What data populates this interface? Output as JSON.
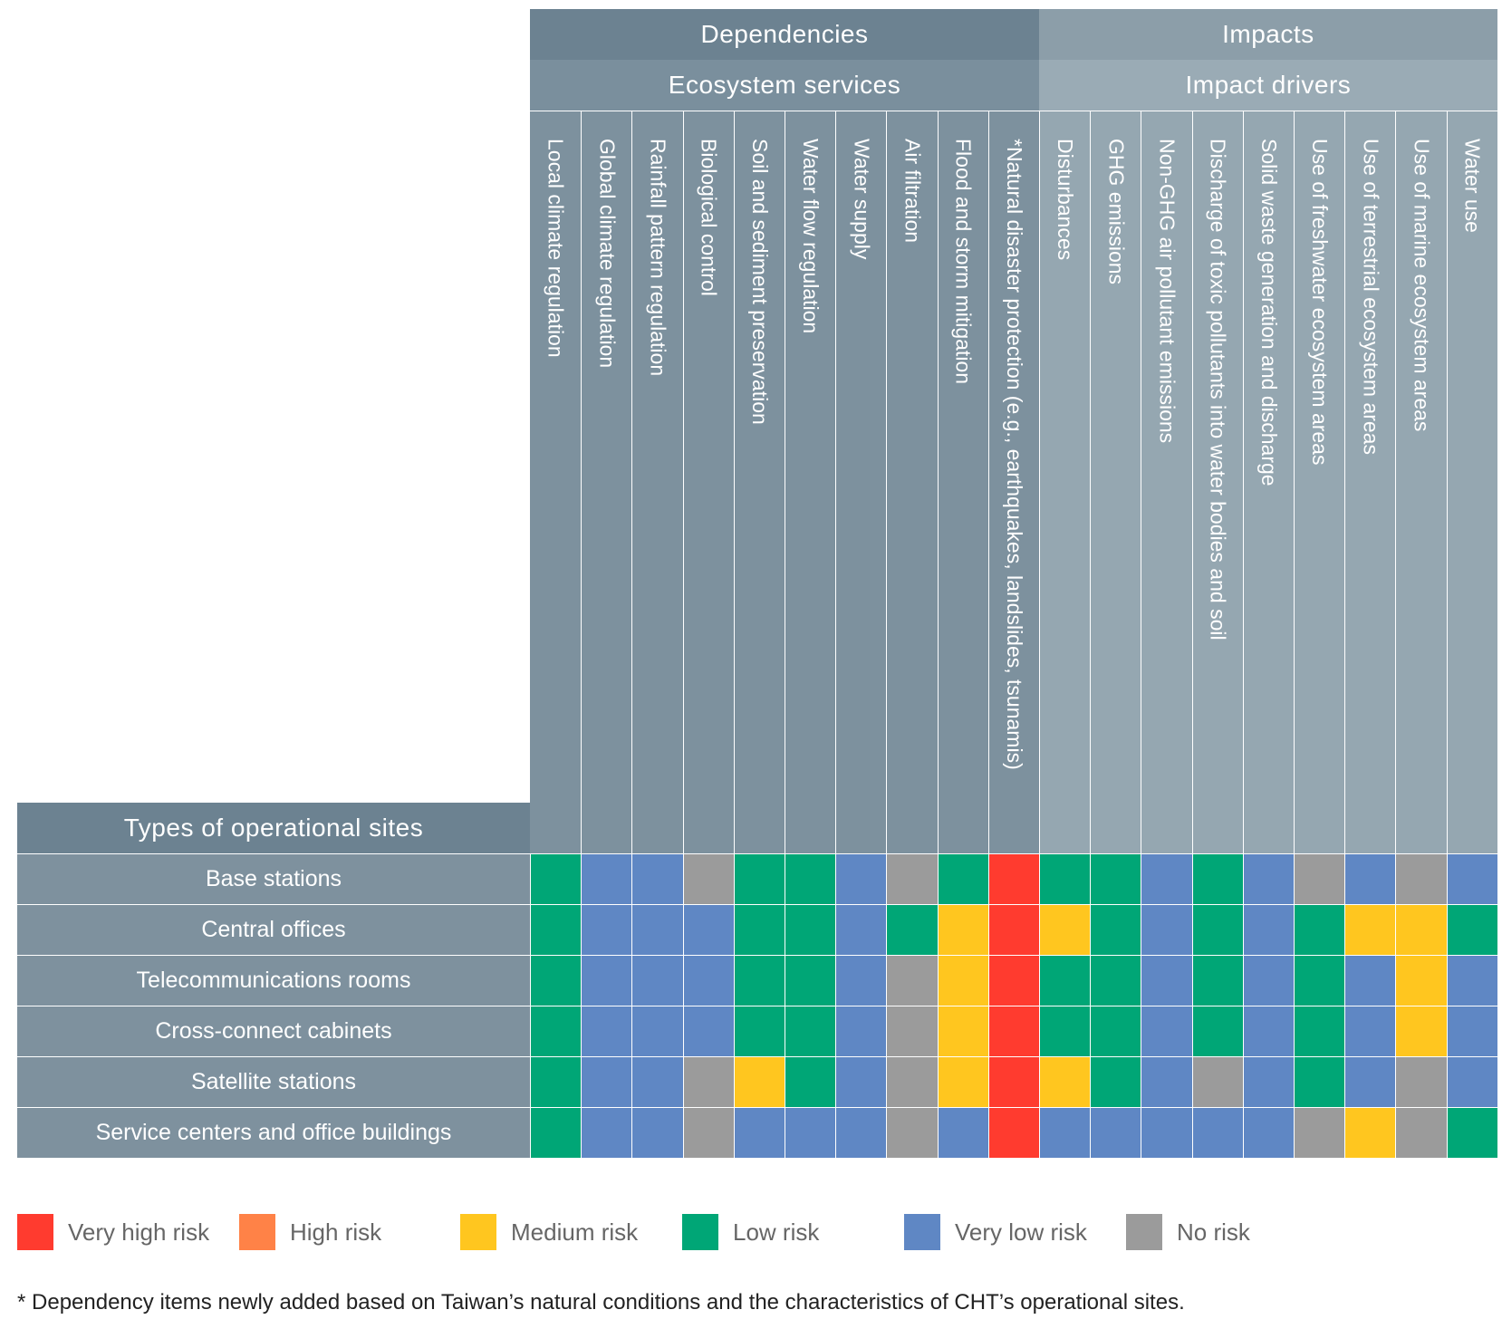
{
  "chart_data": {
    "type": "heatmap",
    "group_headers": {
      "dependencies": "Dependencies",
      "impacts": "Impacts",
      "ecosystem_services": "Ecosystem services",
      "impact_drivers": "Impact drivers"
    },
    "row_header": "Types of operational sites",
    "dependency_columns": [
      "Local climate regulation",
      "Global climate regulation",
      "Rainfall pattern regulation",
      "Biological control",
      "Soil and sediment preservation",
      "Water flow regulation",
      "Water supply",
      "Air filtration",
      "Flood and storm mitigation",
      "*Natural disaster protection (e.g., earthquakes, landslides, tsunamis)"
    ],
    "impact_columns": [
      "Disturbances",
      "GHG emissions",
      "Non-GHG air pollutant emissions",
      "Discharge of toxic pollutants into water bodies and soil",
      "Solid waste generation and discharge",
      "Use of freshwater ecosystem areas",
      "Use of terrestrial ecosystem areas",
      "Use of marine ecosystem areas",
      "Water use"
    ],
    "rows": [
      "Base stations",
      "Central offices",
      "Telecommunications rooms",
      "Cross-connect cabinets",
      "Satellite stations",
      "Service centers and office buildings"
    ],
    "values": [
      [
        "low",
        "verylow",
        "verylow",
        "none",
        "low",
        "low",
        "verylow",
        "none",
        "low",
        "veryhigh",
        "low",
        "low",
        "verylow",
        "low",
        "verylow",
        "none",
        "verylow",
        "none",
        "verylow"
      ],
      [
        "low",
        "verylow",
        "verylow",
        "verylow",
        "low",
        "low",
        "verylow",
        "low",
        "medium",
        "veryhigh",
        "medium",
        "low",
        "verylow",
        "low",
        "verylow",
        "low",
        "medium",
        "medium",
        "low"
      ],
      [
        "low",
        "verylow",
        "verylow",
        "verylow",
        "low",
        "low",
        "verylow",
        "none",
        "medium",
        "veryhigh",
        "low",
        "low",
        "verylow",
        "low",
        "verylow",
        "low",
        "verylow",
        "medium",
        "verylow"
      ],
      [
        "low",
        "verylow",
        "verylow",
        "verylow",
        "low",
        "low",
        "verylow",
        "none",
        "medium",
        "veryhigh",
        "low",
        "low",
        "verylow",
        "low",
        "verylow",
        "low",
        "verylow",
        "medium",
        "verylow"
      ],
      [
        "low",
        "verylow",
        "verylow",
        "none",
        "medium",
        "low",
        "verylow",
        "none",
        "medium",
        "veryhigh",
        "medium",
        "low",
        "verylow",
        "none",
        "verylow",
        "low",
        "verylow",
        "none",
        "verylow"
      ],
      [
        "low",
        "verylow",
        "verylow",
        "none",
        "verylow",
        "verylow",
        "verylow",
        "none",
        "verylow",
        "veryhigh",
        "verylow",
        "verylow",
        "verylow",
        "verylow",
        "verylow",
        "none",
        "medium",
        "none",
        "low"
      ]
    ],
    "legend": [
      {
        "key": "veryhigh",
        "label": "Very high risk",
        "color": "#ff3b2f"
      },
      {
        "key": "high",
        "label": "High risk",
        "color": "#ff8247"
      },
      {
        "key": "medium",
        "label": "Medium risk",
        "color": "#ffc61f"
      },
      {
        "key": "low",
        "label": "Low risk",
        "color": "#00a676"
      },
      {
        "key": "verylow",
        "label": "Very low risk",
        "color": "#5f87c4"
      },
      {
        "key": "none",
        "label": "No risk",
        "color": "#9b9b9b"
      }
    ]
  },
  "footnote": "* Dependency items newly added based on Taiwan’s natural conditions and the characteristics of CHT’s operational sites.",
  "colors": {
    "dependencies_header": "#6c8291",
    "dependencies_sub": "#7a8f9d",
    "dependencies_columns": "#7d919e",
    "impacts_header": "#8c9ea9",
    "impacts_sub": "#9aabb5",
    "impacts_columns": "#95a7b1",
    "row_label_bg": "#7e919e",
    "row_header_bg": "#6c8291"
  }
}
